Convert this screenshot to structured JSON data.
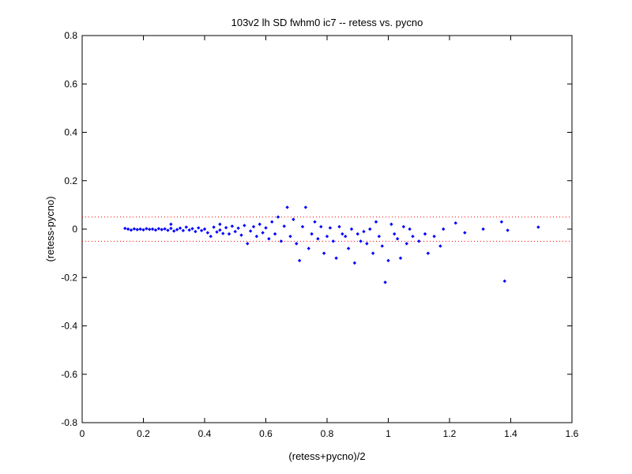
{
  "chart_data": {
    "type": "scatter",
    "title": "103v2 lh SD fwhm0 ic7 -- retess vs. pycno",
    "xlabel": "(retess+pycno)/2",
    "ylabel": "(retess-pycno)",
    "xlim": [
      0,
      1.6
    ],
    "ylim": [
      -0.8,
      0.8
    ],
    "xticks": [
      0,
      0.2,
      0.4,
      0.6,
      0.8,
      1,
      1.2,
      1.4,
      1.6
    ],
    "xtick_labels": [
      "0",
      "0.2",
      "0.4",
      "0.6",
      "0.8",
      "1",
      "1.2",
      "1.4",
      "1.6"
    ],
    "yticks": [
      -0.8,
      -0.6,
      -0.4,
      -0.2,
      0,
      0.2,
      0.4,
      0.6,
      0.8
    ],
    "ytick_labels": [
      "-0.8",
      "-0.6",
      "-0.4",
      "-0.2",
      "0",
      "0.2",
      "0.4",
      "0.6",
      "0.8"
    ],
    "grid": false,
    "colors": {
      "points": "#0000ff",
      "reference_lines": "#ff0000",
      "axes": "#000000"
    },
    "reference_lines": [
      0.05,
      -0.05
    ],
    "points": [
      [
        0.14,
        0.003
      ],
      [
        0.15,
        0.0
      ],
      [
        0.16,
        -0.004
      ],
      [
        0.17,
        0.001
      ],
      [
        0.18,
        -0.002
      ],
      [
        0.19,
        0.0
      ],
      [
        0.2,
        -0.003
      ],
      [
        0.21,
        0.002
      ],
      [
        0.22,
        -0.001
      ],
      [
        0.23,
        0.0
      ],
      [
        0.24,
        -0.004
      ],
      [
        0.25,
        0.002
      ],
      [
        0.26,
        -0.002
      ],
      [
        0.27,
        0.001
      ],
      [
        0.28,
        -0.005
      ],
      [
        0.29,
        0.003
      ],
      [
        0.29,
        0.02
      ],
      [
        0.3,
        -0.008
      ],
      [
        0.31,
        -0.002
      ],
      [
        0.32,
        0.004
      ],
      [
        0.33,
        -0.006
      ],
      [
        0.34,
        0.008
      ],
      [
        0.35,
        -0.004
      ],
      [
        0.36,
        0.002
      ],
      [
        0.37,
        -0.01
      ],
      [
        0.38,
        0.005
      ],
      [
        0.39,
        -0.006
      ],
      [
        0.4,
        0.0
      ],
      [
        0.41,
        -0.015
      ],
      [
        0.42,
        -0.03
      ],
      [
        0.43,
        0.008
      ],
      [
        0.44,
        -0.012
      ],
      [
        0.45,
        0.02
      ],
      [
        0.45,
        -0.004
      ],
      [
        0.46,
        -0.018
      ],
      [
        0.47,
        0.006
      ],
      [
        0.48,
        -0.02
      ],
      [
        0.49,
        0.012
      ],
      [
        0.5,
        -0.01
      ],
      [
        0.51,
        0.004
      ],
      [
        0.52,
        -0.025
      ],
      [
        0.53,
        0.015
      ],
      [
        0.54,
        -0.06
      ],
      [
        0.55,
        -0.008
      ],
      [
        0.56,
        0.01
      ],
      [
        0.57,
        -0.03
      ],
      [
        0.58,
        0.02
      ],
      [
        0.59,
        -0.015
      ],
      [
        0.6,
        0.005
      ],
      [
        0.61,
        -0.04
      ],
      [
        0.62,
        0.03
      ],
      [
        0.63,
        -0.02
      ],
      [
        0.64,
        0.05
      ],
      [
        0.65,
        -0.05
      ],
      [
        0.66,
        0.012
      ],
      [
        0.67,
        0.09
      ],
      [
        0.68,
        -0.03
      ],
      [
        0.69,
        0.04
      ],
      [
        0.7,
        -0.06
      ],
      [
        0.71,
        -0.13
      ],
      [
        0.72,
        0.01
      ],
      [
        0.73,
        0.09
      ],
      [
        0.74,
        -0.08
      ],
      [
        0.75,
        -0.02
      ],
      [
        0.76,
        0.03
      ],
      [
        0.77,
        -0.04
      ],
      [
        0.78,
        0.01
      ],
      [
        0.79,
        -0.1
      ],
      [
        0.8,
        -0.03
      ],
      [
        0.81,
        0.005
      ],
      [
        0.82,
        -0.05
      ],
      [
        0.83,
        -0.12
      ],
      [
        0.84,
        0.01
      ],
      [
        0.85,
        -0.02
      ],
      [
        0.86,
        -0.03
      ],
      [
        0.87,
        -0.08
      ],
      [
        0.88,
        0.0
      ],
      [
        0.89,
        -0.14
      ],
      [
        0.9,
        -0.02
      ],
      [
        0.91,
        -0.05
      ],
      [
        0.92,
        -0.01
      ],
      [
        0.93,
        -0.06
      ],
      [
        0.94,
        0.0
      ],
      [
        0.95,
        -0.1
      ],
      [
        0.96,
        0.03
      ],
      [
        0.97,
        -0.03
      ],
      [
        0.98,
        -0.07
      ],
      [
        0.99,
        -0.22
      ],
      [
        1.0,
        -0.13
      ],
      [
        1.01,
        0.02
      ],
      [
        1.02,
        -0.02
      ],
      [
        1.03,
        -0.04
      ],
      [
        1.04,
        -0.12
      ],
      [
        1.05,
        0.01
      ],
      [
        1.06,
        -0.06
      ],
      [
        1.07,
        0.0
      ],
      [
        1.08,
        -0.03
      ],
      [
        1.1,
        -0.05
      ],
      [
        1.12,
        -0.02
      ],
      [
        1.13,
        -0.1
      ],
      [
        1.15,
        -0.03
      ],
      [
        1.17,
        -0.07
      ],
      [
        1.18,
        0.0
      ],
      [
        1.22,
        0.025
      ],
      [
        1.25,
        -0.015
      ],
      [
        1.31,
        0.0
      ],
      [
        1.37,
        0.03
      ],
      [
        1.38,
        -0.215
      ],
      [
        1.39,
        -0.005
      ],
      [
        1.49,
        0.008
      ]
    ]
  }
}
